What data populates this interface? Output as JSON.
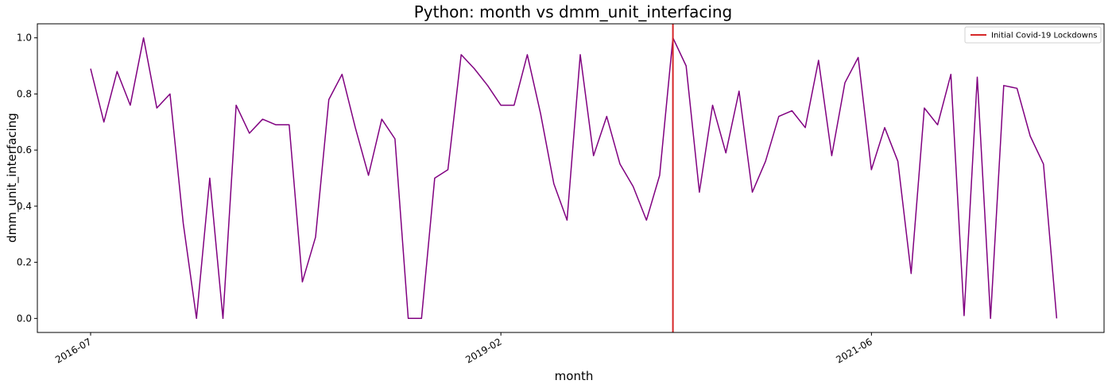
{
  "chart_data": {
    "type": "line",
    "title": "Python: month vs dmm_unit_interfacing",
    "xlabel": "month",
    "ylabel": "dmm_unit_interfacing",
    "x": [
      "2016-07",
      "2016-08",
      "2016-09",
      "2016-10",
      "2016-11",
      "2016-12",
      "2017-01",
      "2017-02",
      "2017-03",
      "2017-04",
      "2017-05",
      "2017-06",
      "2017-07",
      "2017-08",
      "2017-09",
      "2017-10",
      "2017-11",
      "2017-12",
      "2018-01",
      "2018-02",
      "2018-03",
      "2018-04",
      "2018-05",
      "2018-06",
      "2018-07",
      "2018-08",
      "2018-09",
      "2018-10",
      "2018-11",
      "2018-12",
      "2019-01",
      "2019-02",
      "2019-03",
      "2019-04",
      "2019-05",
      "2019-06",
      "2019-07",
      "2019-08",
      "2019-09",
      "2019-10",
      "2019-11",
      "2019-12",
      "2020-01",
      "2020-02",
      "2020-03",
      "2020-04",
      "2020-05",
      "2020-06",
      "2020-07",
      "2020-08",
      "2020-09",
      "2020-10",
      "2020-11",
      "2020-12",
      "2021-01",
      "2021-02",
      "2021-03",
      "2021-04",
      "2021-05",
      "2021-06",
      "2021-07",
      "2021-08",
      "2021-09",
      "2021-10",
      "2021-11",
      "2021-12",
      "2022-01",
      "2022-02",
      "2022-03",
      "2022-04",
      "2022-05",
      "2022-06",
      "2022-07",
      "2022-08"
    ],
    "series": [
      {
        "values": [
          0.89,
          0.7,
          0.88,
          0.76,
          1.0,
          0.75,
          0.8,
          0.34,
          0.0,
          0.5,
          0.0,
          0.76,
          0.66,
          0.71,
          0.69,
          0.69,
          0.13,
          0.29,
          0.78,
          0.87,
          0.68,
          0.51,
          0.71,
          0.64,
          0.0,
          0.0,
          0.5,
          0.53,
          0.94,
          0.89,
          0.83,
          0.76,
          0.76,
          0.94,
          0.73,
          0.48,
          0.35,
          0.94,
          0.58,
          0.72,
          0.55,
          0.47,
          0.35,
          0.51,
          1.0,
          0.9,
          0.45,
          0.76,
          0.59,
          0.81,
          0.45,
          0.56,
          0.72,
          0.74,
          0.68,
          0.92,
          0.58,
          0.84,
          0.93,
          0.53,
          0.68,
          0.56,
          0.16,
          0.75,
          0.69,
          0.87,
          0.01,
          0.86,
          0.0,
          0.83,
          0.82,
          0.65,
          0.55,
          0.0
        ],
        "color": "#800080"
      }
    ],
    "x_ticks": [
      "2016-07",
      "2019-02",
      "2021-06"
    ],
    "y_ticks": [
      "0.0",
      "0.2",
      "0.4",
      "0.6",
      "0.8",
      "1.0"
    ],
    "ylim": [
      -0.05,
      1.05
    ],
    "grid": false,
    "annotation_line": {
      "x": "2020-03",
      "label": "Initial Covid-19 Lockdowns",
      "color": "#d62728"
    },
    "legend": {
      "position": "top-right",
      "entries": [
        "Initial Covid-19 Lockdowns"
      ]
    }
  }
}
